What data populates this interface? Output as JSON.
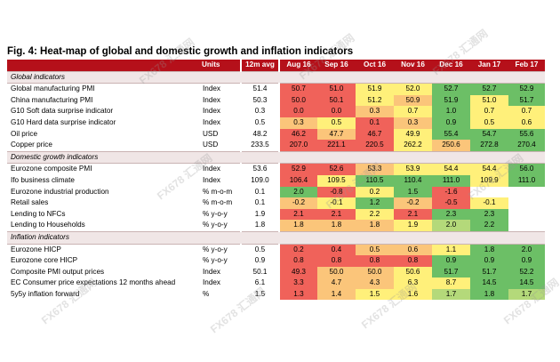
{
  "title": "Fig. 4: Heat-map of global and domestic growth and inflation indicators",
  "columns": {
    "units": "Units",
    "avg": "12m avg",
    "months": [
      "Aug 16",
      "Sep 16",
      "Oct 16",
      "Nov 16",
      "Dec 16",
      "Jan 17",
      "Feb 17"
    ]
  },
  "colors": {
    "header_bg": "#b5101a",
    "red": "#f0625a",
    "red_light": "#f6a07a",
    "orange": "#fbc57a",
    "yellow": "#fff07a",
    "green_light": "#b4d97a",
    "green": "#6cbf66"
  },
  "sections": [
    {
      "label": "Global indicators",
      "rows": [
        {
          "name": "Global manufacturing PMI",
          "unit": "Index",
          "avg": "51.4",
          "values": [
            "50.7",
            "51.0",
            "51.9",
            "52.0",
            "52.7",
            "52.7",
            "52.9"
          ],
          "heat": [
            "red",
            "red",
            "yellow",
            "yellow",
            "green",
            "green",
            "green"
          ]
        },
        {
          "name": "China manufacturing PMI",
          "unit": "Index",
          "avg": "50.3",
          "values": [
            "50.0",
            "50.1",
            "51.2",
            "50.9",
            "51.9",
            "51.0",
            "51.7"
          ],
          "heat": [
            "red",
            "red",
            "yellow",
            "orange",
            "green",
            "yellow",
            "green"
          ]
        },
        {
          "name": "G10 Soft data surprise indicator",
          "unit": "Index",
          "avg": "0.3",
          "values": [
            "0.0",
            "0.0",
            "0.3",
            "0.7",
            "1.0",
            "0.7",
            "0.7"
          ],
          "heat": [
            "red",
            "red",
            "orange",
            "yellow",
            "green",
            "yellow",
            "yellow"
          ]
        },
        {
          "name": "G10 Hard data surprise indicator",
          "unit": "Index",
          "avg": "0.5",
          "values": [
            "0.3",
            "0.5",
            "0.1",
            "0.3",
            "0.9",
            "0.5",
            "0.6"
          ],
          "heat": [
            "orange",
            "yellow",
            "red",
            "orange",
            "green",
            "yellow",
            "yellow"
          ]
        },
        {
          "name": "Oil price",
          "unit": "USD",
          "avg": "48.2",
          "values": [
            "46.2",
            "47.7",
            "46.7",
            "49.9",
            "55.4",
            "54.7",
            "55.6"
          ],
          "heat": [
            "red",
            "orange",
            "red",
            "yellow",
            "green",
            "green",
            "green"
          ]
        },
        {
          "name": "Copper price",
          "unit": "USD",
          "avg": "233.5",
          "values": [
            "207.0",
            "221.1",
            "220.5",
            "262.2",
            "250.6",
            "272.8",
            "270.4"
          ],
          "heat": [
            "red",
            "red",
            "red",
            "yellow",
            "orange",
            "green",
            "green"
          ]
        }
      ]
    },
    {
      "label": "Domestic growth indicators",
      "rows": [
        {
          "name": "Eurozone composite PMI",
          "unit": "Index",
          "avg": "53.6",
          "values": [
            "52.9",
            "52.6",
            "53.3",
            "53.9",
            "54.4",
            "54.4",
            "56.0"
          ],
          "heat": [
            "red",
            "red",
            "orange",
            "yellow",
            "yellow",
            "yellow",
            "green"
          ]
        },
        {
          "name": "Ifo business climate",
          "unit": "Index",
          "avg": "109.0",
          "values": [
            "106.4",
            "109.5",
            "110.5",
            "110.4",
            "111.0",
            "109.9",
            "111.0"
          ],
          "heat": [
            "red",
            "yellow",
            "green",
            "green",
            "green",
            "yellow",
            "green"
          ]
        },
        {
          "name": "Eurozone industrial production",
          "unit": "% m-o-m",
          "avg": "0.1",
          "values": [
            "2.0",
            "-0.8",
            "0.2",
            "1.5",
            "-1.6",
            "",
            ""
          ],
          "heat": [
            "green",
            "red",
            "yellow",
            "green",
            "red",
            "",
            ""
          ]
        },
        {
          "name": "Retail sales",
          "unit": "% m-o-m",
          "avg": "0.1",
          "values": [
            "-0.2",
            "-0.1",
            "1.2",
            "-0.2",
            "-0.5",
            "-0.1",
            ""
          ],
          "heat": [
            "orange",
            "yellow",
            "green",
            "orange",
            "red",
            "yellow",
            ""
          ]
        },
        {
          "name": "Lending to NFCs",
          "unit": "% y-o-y",
          "avg": "1.9",
          "values": [
            "2.1",
            "2.1",
            "2.2",
            "2.1",
            "2.3",
            "2.3",
            ""
          ],
          "heat": [
            "red",
            "red",
            "yellow",
            "red",
            "green",
            "green",
            ""
          ]
        },
        {
          "name": "Lending to Households",
          "unit": "% y-o-y",
          "avg": "1.8",
          "values": [
            "1.8",
            "1.8",
            "1.8",
            "1.9",
            "2.0",
            "2.2",
            ""
          ],
          "heat": [
            "orange",
            "orange",
            "orange",
            "yellow",
            "green_light",
            "green",
            ""
          ]
        }
      ]
    },
    {
      "label": "Inflation indicators",
      "rows": [
        {
          "name": "Eurozone HICP",
          "unit": "% y-o-y",
          "avg": "0.5",
          "values": [
            "0.2",
            "0.4",
            "0.5",
            "0.6",
            "1.1",
            "1.8",
            "2.0"
          ],
          "heat": [
            "red",
            "red",
            "orange",
            "orange",
            "yellow",
            "green",
            "green"
          ]
        },
        {
          "name": "Eurozone core HICP",
          "unit": "% y-o-y",
          "avg": "0.9",
          "values": [
            "0.8",
            "0.8",
            "0.8",
            "0.8",
            "0.9",
            "0.9",
            "0.9"
          ],
          "heat": [
            "red",
            "red",
            "red",
            "red",
            "green",
            "green",
            "green"
          ]
        },
        {
          "name": "Composite PMI output prices",
          "unit": "Index",
          "avg": "50.1",
          "values": [
            "49.3",
            "50.0",
            "50.0",
            "50.6",
            "51.7",
            "51.7",
            "52.2"
          ],
          "heat": [
            "red",
            "orange",
            "orange",
            "yellow",
            "green",
            "green",
            "green"
          ]
        },
        {
          "name": "EC Consumer price expectations 12 months ahead",
          "unit": "Index",
          "avg": "6.1",
          "values": [
            "3.3",
            "4.7",
            "4.3",
            "6.3",
            "8.7",
            "14.5",
            "14.5"
          ],
          "heat": [
            "red",
            "orange",
            "orange",
            "yellow",
            "yellow",
            "green",
            "green"
          ]
        },
        {
          "name": "5y5y inflation forward",
          "unit": "%",
          "avg": "1.5",
          "values": [
            "1.3",
            "1.4",
            "1.5",
            "1.6",
            "1.7",
            "1.8",
            "1.7"
          ],
          "heat": [
            "red",
            "orange",
            "yellow",
            "yellow",
            "green_light",
            "green",
            "green_light"
          ]
        }
      ]
    }
  ],
  "watermark": "FX678 汇通网"
}
